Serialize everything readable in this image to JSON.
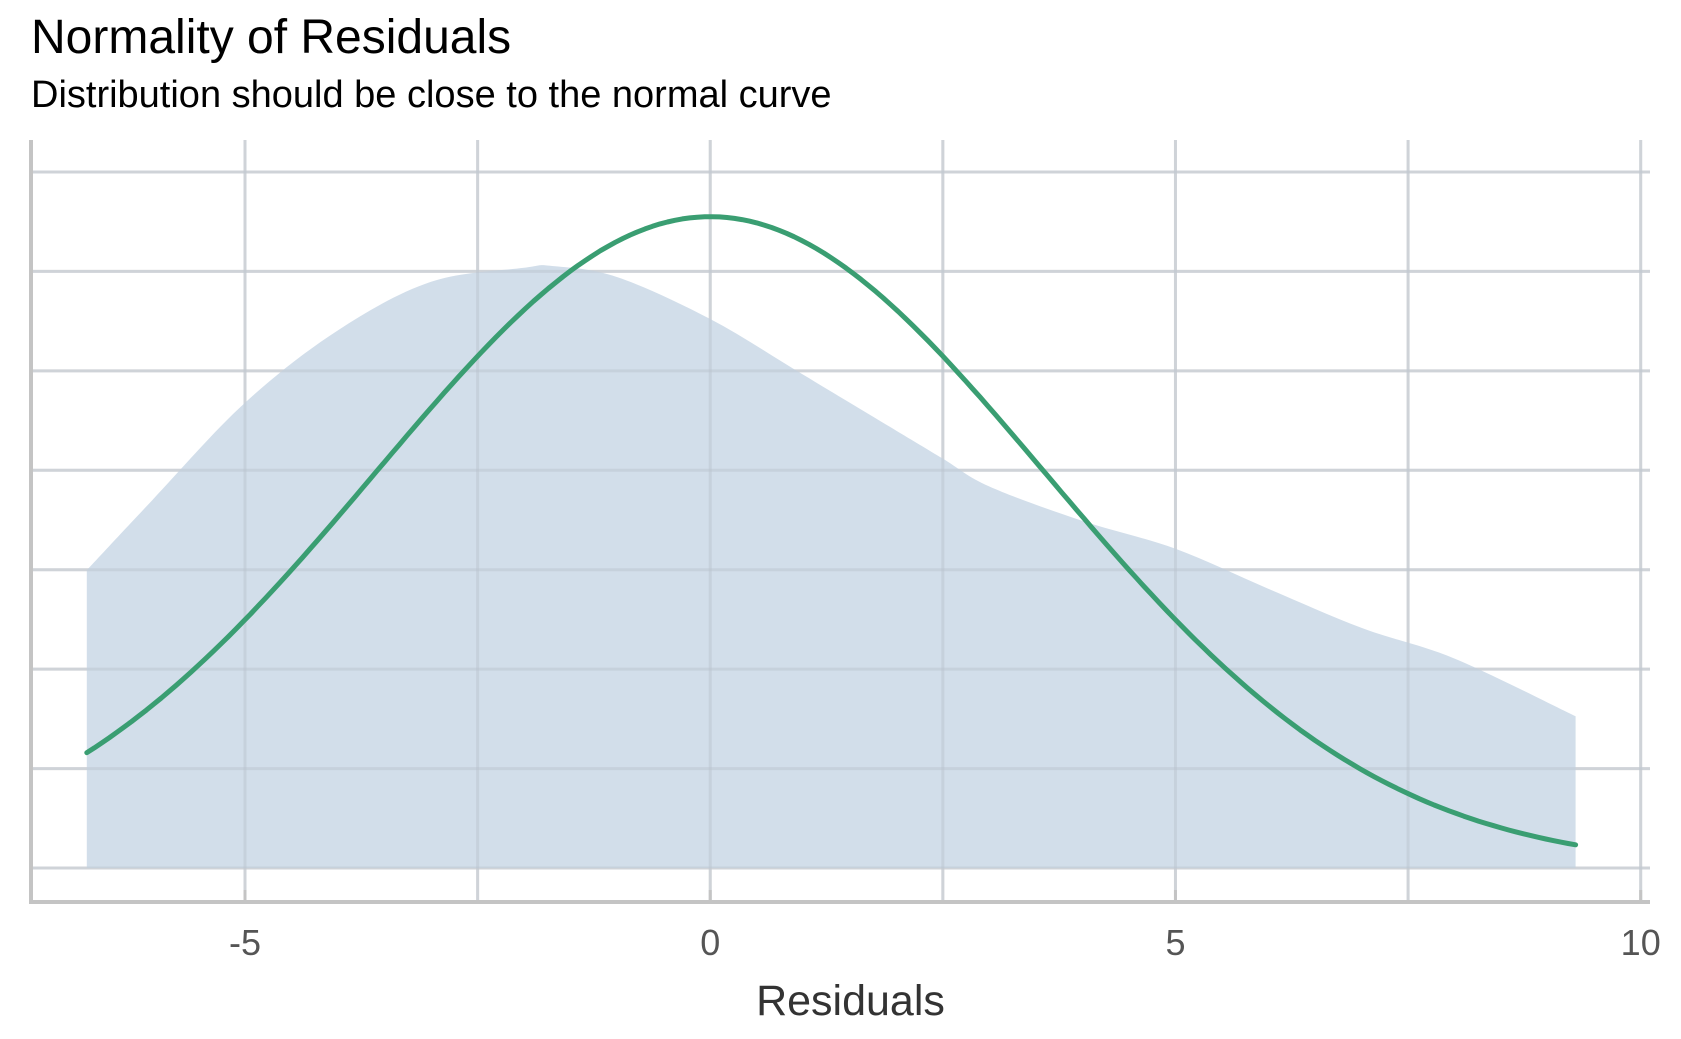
{
  "chart_data": {
    "type": "area",
    "title": "Normality of Residuals",
    "subtitle": "Distribution should be close to the normal curve",
    "xlabel": "Residuals",
    "ylabel": "",
    "xlim": [
      -7.3,
      10.1
    ],
    "x_ticks": [
      "-5",
      "0",
      "5",
      "10"
    ],
    "x_tick_values": [
      -5,
      0,
      5,
      10
    ],
    "y_ticks_labeled": false,
    "ylim": [
      0,
      0.0748
    ],
    "grid": true,
    "legend": "none",
    "series": [
      {
        "kind": "density-area",
        "color": "#d1ddea",
        "x": [
          -6.7,
          -6.0,
          -5.0,
          -4.0,
          -3.0,
          -2.0,
          -1.7,
          -1.0,
          0.0,
          1.0,
          2.0,
          2.5,
          3.0,
          4.0,
          5.0,
          6.0,
          7.0,
          8.0,
          9.3
        ],
        "y": [
          0.032,
          0.0395,
          0.05,
          0.0578,
          0.063,
          0.0645,
          0.0647,
          0.0635,
          0.059,
          0.053,
          0.047,
          0.044,
          0.041,
          0.0373,
          0.0343,
          0.03,
          0.0258,
          0.0225,
          0.0163
        ]
      },
      {
        "kind": "normal-curve",
        "color": "#3a9e72",
        "mean": 0,
        "sd": 3.6,
        "peak": 0.07
      }
    ]
  }
}
